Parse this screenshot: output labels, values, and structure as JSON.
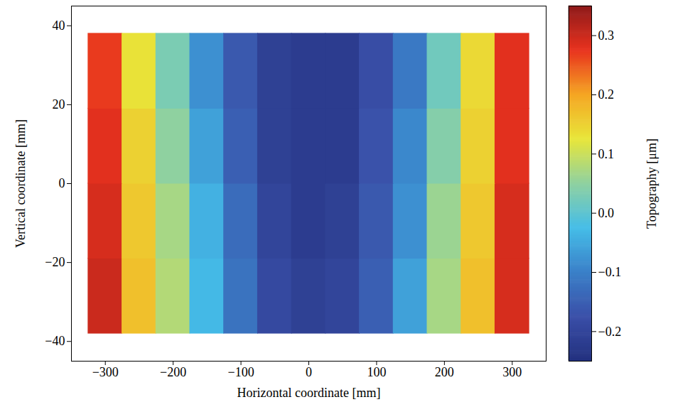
{
  "chart_data": {
    "type": "heatmap",
    "xlabel": "Horizontal coordinate [mm]",
    "ylabel": "Vertical coordinate [mm]",
    "x": [
      -300,
      -250,
      -200,
      -150,
      -100,
      -50,
      0,
      50,
      100,
      150,
      200,
      250,
      300
    ],
    "y": [
      -28.5,
      -9.5,
      9.5,
      28.5
    ],
    "values": [
      [
        0.3,
        0.17,
        0.08,
        -0.03,
        -0.12,
        -0.19,
        -0.21,
        -0.2,
        -0.15,
        -0.06,
        0.07,
        0.17,
        0.29
      ],
      [
        0.29,
        0.16,
        0.07,
        -0.04,
        -0.13,
        -0.2,
        -0.22,
        -0.21,
        -0.16,
        -0.08,
        0.06,
        0.16,
        0.29
      ],
      [
        0.28,
        0.15,
        0.05,
        -0.06,
        -0.15,
        -0.21,
        -0.22,
        -0.22,
        -0.17,
        -0.09,
        0.04,
        0.15,
        0.28
      ],
      [
        0.27,
        0.13,
        0.03,
        -0.08,
        -0.16,
        -0.21,
        -0.22,
        -0.22,
        -0.18,
        -0.11,
        0.02,
        0.14,
        0.28
      ]
    ],
    "xlim": [
      -350,
      350
    ],
    "xticks": [
      {
        "value": -300,
        "label": "−300"
      },
      {
        "value": -200,
        "label": "−200"
      },
      {
        "value": -100,
        "label": "−100"
      },
      0,
      100,
      200,
      300
    ],
    "ylim": [
      -45,
      45
    ],
    "yticks": [
      {
        "value": -40,
        "label": "−40"
      },
      {
        "value": -20,
        "label": "−20"
      },
      0,
      20,
      40
    ],
    "grid": false,
    "colorbar": {
      "label": "Topography [μm]",
      "lim": [
        -0.25,
        0.35
      ],
      "ticks": [
        {
          "value": -0.2,
          "label": "−0.2"
        },
        {
          "value": -0.1,
          "label": "−0.1"
        },
        {
          "value": 0,
          "label": "0.0"
        },
        {
          "value": 0.1,
          "label": "0.1"
        },
        {
          "value": 0.2,
          "label": "0.2"
        },
        {
          "value": 0.3,
          "label": "0.3"
        }
      ]
    }
  }
}
